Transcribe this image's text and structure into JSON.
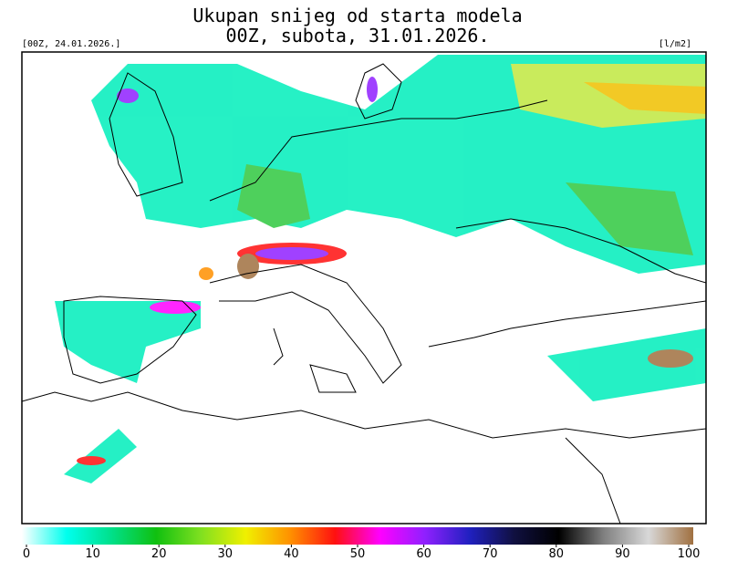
{
  "header": {
    "title": "Ukupan snijeg od starta modela",
    "subtitle": "00Z, subota, 31.01.2026.",
    "run": "[00Z, 24.01.2026.]",
    "unit": "[l/m2]"
  },
  "colorbar": {
    "range": [
      0,
      100
    ],
    "ticks": [
      0,
      10,
      20,
      30,
      40,
      50,
      60,
      70,
      80,
      90,
      100
    ],
    "colors": [
      "#ffffff",
      "#00ffee",
      "#00e08a",
      "#10c010",
      "#80e020",
      "#f0f000",
      "#ff9000",
      "#ff1010",
      "#ff00ff",
      "#9020ff",
      "#2020c0",
      "#101040",
      "#000000",
      "#808080",
      "#d8d8d8",
      "#a07040"
    ]
  }
}
